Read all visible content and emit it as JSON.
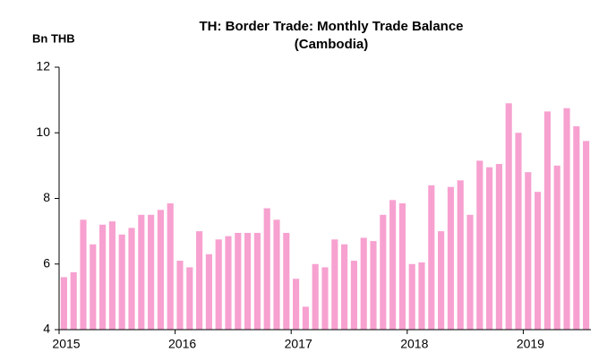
{
  "chart_data": {
    "type": "bar",
    "title_lines": [
      "TH: Border Trade: Monthly Trade Balance",
      "(Cambodia)"
    ],
    "y_label": "Bn THB",
    "color": "#f7a1d0",
    "categories": [
      "2015",
      null,
      null,
      null,
      null,
      null,
      null,
      null,
      null,
      null,
      null,
      null,
      "2016",
      null,
      null,
      null,
      null,
      null,
      null,
      null,
      null,
      null,
      null,
      null,
      "2017",
      null,
      null,
      null,
      null,
      null,
      null,
      null,
      null,
      null,
      null,
      null,
      "2018",
      null,
      null,
      null,
      null,
      null,
      null,
      null,
      null,
      null,
      null,
      null,
      "2019",
      null,
      null,
      null,
      null,
      null,
      null
    ],
    "values": [
      5.6,
      5.75,
      7.35,
      6.6,
      7.2,
      7.3,
      6.9,
      7.1,
      7.5,
      7.5,
      7.65,
      7.85,
      6.1,
      5.9,
      7.0,
      6.3,
      6.75,
      6.85,
      6.95,
      6.95,
      6.95,
      7.7,
      7.35,
      6.95,
      5.55,
      4.7,
      6.0,
      5.9,
      6.75,
      6.6,
      6.1,
      6.8,
      6.7,
      7.5,
      7.95,
      7.85,
      6.0,
      6.05,
      8.4,
      7.0,
      8.35,
      8.55,
      7.5,
      9.15,
      8.95,
      9.05,
      10.9,
      10.0,
      8.8,
      8.2,
      10.65,
      9.0,
      10.75,
      10.2,
      9.75
    ],
    "ylim": [
      4,
      12
    ],
    "yticks": [
      4,
      6,
      8,
      10,
      12
    ]
  }
}
